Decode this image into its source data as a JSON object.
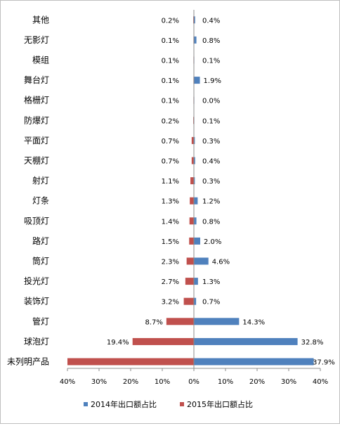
{
  "chart_data": {
    "type": "bar",
    "orientation": "horizontal-butterfly",
    "categories": [
      "其他",
      "无影灯",
      "模组",
      "舞台灯",
      "格栅灯",
      "防爆灯",
      "平面灯",
      "天棚灯",
      "射灯",
      "灯条",
      "吸顶灯",
      "路灯",
      "筒灯",
      "投光灯",
      "装饰灯",
      "管灯",
      "球泡灯",
      "未列明产品"
    ],
    "series": [
      {
        "name": "2014年出口额占比",
        "color": "#4f81bd",
        "direction": "right",
        "values": [
          0.4,
          0.8,
          0.1,
          1.9,
          0.0,
          0.1,
          0.3,
          0.4,
          0.3,
          1.2,
          0.8,
          2.0,
          4.6,
          1.3,
          0.7,
          14.3,
          32.8,
          37.9
        ],
        "labels": [
          "0.4%",
          "0.8%",
          "0.1%",
          "1.9%",
          "0.0%",
          "0.1%",
          "0.3%",
          "0.4%",
          "0.3%",
          "1.2%",
          "0.8%",
          "2.0%",
          "4.6%",
          "1.3%",
          "0.7%",
          "14.3%",
          "32.8%",
          "37.9%"
        ]
      },
      {
        "name": "2015年出口额占比",
        "color": "#c0504d",
        "direction": "left",
        "values": [
          0.2,
          0.1,
          0.1,
          0.1,
          0.1,
          0.2,
          0.7,
          0.7,
          1.1,
          1.3,
          1.4,
          1.5,
          2.3,
          2.7,
          3.2,
          8.7,
          19.4,
          40.0
        ],
        "labels": [
          "0.2%",
          "0.1%",
          "0.1%",
          "0.1%",
          "0.1%",
          "0.2%",
          "0.7%",
          "0.7%",
          "1.1%",
          "1.3%",
          "1.4%",
          "1.5%",
          "2.3%",
          "2.7%",
          "3.2%",
          "8.7%",
          "19.4%",
          ""
        ]
      }
    ],
    "xaxis": {
      "range": [
        -40,
        40
      ],
      "ticks": [
        -40,
        -30,
        -20,
        -10,
        0,
        10,
        20,
        30,
        40
      ],
      "tick_labels": [
        "40%",
        "30%",
        "20%",
        "10%",
        "0%",
        "10%",
        "20%",
        "30%",
        "40%"
      ]
    },
    "grid": false,
    "legend_position": "bottom"
  }
}
